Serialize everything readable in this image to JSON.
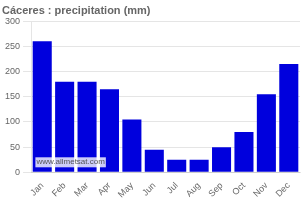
{
  "chart_data": {
    "type": "bar",
    "title": "Cáceres : precipitation (mm)",
    "categories": [
      "Jan",
      "Feb",
      "Mar",
      "Apr",
      "May",
      "Jun",
      "Jul",
      "Aug",
      "Sep",
      "Oct",
      "Nov",
      "Dec"
    ],
    "values": [
      260,
      180,
      180,
      165,
      105,
      45,
      25,
      25,
      50,
      80,
      155,
      215
    ],
    "color": "#0000dd",
    "ylim": [
      0,
      300
    ],
    "yticks": [
      0,
      50,
      100,
      150,
      200,
      250,
      300
    ],
    "grid": true,
    "annotations": [
      "www.allmetsat.com"
    ]
  }
}
